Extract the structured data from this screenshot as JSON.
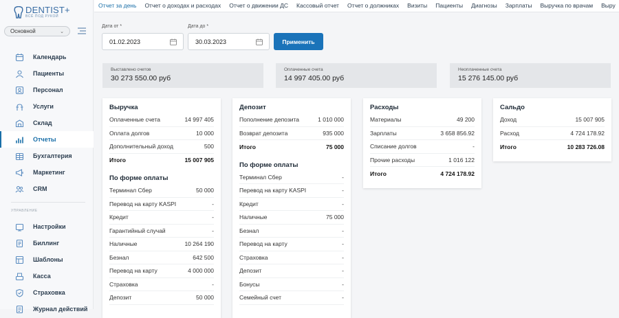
{
  "app": {
    "logo_name": "DENTIST+",
    "logo_tagline": "ВСЁ ПОД РУКОЙ",
    "branch_select": "Основной"
  },
  "sidebar": {
    "items": [
      {
        "label": "Календарь",
        "icon": "calendar-icon"
      },
      {
        "label": "Пациенты",
        "icon": "patients-icon"
      },
      {
        "label": "Персонал",
        "icon": "staff-icon"
      },
      {
        "label": "Услуги",
        "icon": "services-icon"
      },
      {
        "label": "Склад",
        "icon": "warehouse-icon"
      },
      {
        "label": "Отчеты",
        "icon": "reports-icon",
        "active": true
      },
      {
        "label": "Бухгалтерия",
        "icon": "accounting-icon"
      },
      {
        "label": "Маркетинг",
        "icon": "marketing-icon"
      },
      {
        "label": "CRM",
        "icon": "crm-icon"
      }
    ],
    "section_label": "УПРАВЛЕНИЕ",
    "admin_items": [
      {
        "label": "Настройки",
        "icon": "settings-icon"
      },
      {
        "label": "Биллинг",
        "icon": "billing-icon"
      },
      {
        "label": "Шаблоны",
        "icon": "templates-icon"
      },
      {
        "label": "Касса",
        "icon": "cashbox-icon"
      },
      {
        "label": "Страховка",
        "icon": "insurance-icon"
      },
      {
        "label": "Журнал действий",
        "icon": "log-icon"
      }
    ]
  },
  "tabs": [
    "Отчет за день",
    "Отчет о доходах и расходах",
    "Отчет о движении ДС",
    "Кассовый отчет",
    "Отчет о должниках",
    "Визиты",
    "Пациенты",
    "Диагнозы",
    "Зарплаты",
    "Выручка по врачам",
    "Выру"
  ],
  "filters": {
    "date_from_label": "Дата от",
    "date_from": "01.02.2023",
    "date_to_label": "Дата до",
    "date_to": "30.03.2023",
    "required_mark": "*",
    "apply": "Применить"
  },
  "summary": [
    {
      "label": "Выставлено счетов",
      "value": "30 273 550.00 руб"
    },
    {
      "label": "Оплаченные счета",
      "value": "14 997 405.00 руб"
    },
    {
      "label": "Неоплаченные счета",
      "value": "15 276 145.00 руб"
    }
  ],
  "cards": {
    "revenue": {
      "title": "Выручка",
      "rows": [
        [
          "Оплаченные счета",
          "14 997 405"
        ],
        [
          "Оплата долгов",
          "10 000"
        ],
        [
          "Дополнительный доход",
          "500"
        ]
      ],
      "total": [
        "Итого",
        "15 007 905"
      ],
      "sub_title": "По форме оплаты",
      "sub_rows": [
        [
          "Терминал Сбер",
          "50 000"
        ],
        [
          "Перевод на карту KASPI",
          "-"
        ],
        [
          "Кредит",
          "-"
        ],
        [
          "Гарантийный случай",
          "-"
        ],
        [
          "Наличные",
          "10 264 190"
        ],
        [
          "Безнал",
          "642 500"
        ],
        [
          "Перевод на карту",
          "4 000 000"
        ],
        [
          "Страховка",
          "-"
        ],
        [
          "Депозит",
          "50 000"
        ]
      ]
    },
    "deposit": {
      "title": "Депозит",
      "rows": [
        [
          "Пополнение депозита",
          "1 010 000"
        ],
        [
          "Возврат депозита",
          "935 000"
        ]
      ],
      "total": [
        "Итого",
        "75 000"
      ],
      "sub_title": "По форме оплаты",
      "sub_rows": [
        [
          "Терминал Сбер",
          "-"
        ],
        [
          "Перевод на карту KASPI",
          "-"
        ],
        [
          "Кредит",
          "-"
        ],
        [
          "Наличные",
          "75 000"
        ],
        [
          "Безнал",
          "-"
        ],
        [
          "Перевод на карту",
          "-"
        ],
        [
          "Страховка",
          "-"
        ],
        [
          "Депозит",
          "-"
        ],
        [
          "Бонусы",
          "-"
        ],
        [
          "Семейный счет",
          "-"
        ]
      ]
    },
    "expenses": {
      "title": "Расходы",
      "rows": [
        [
          "Материалы",
          "49 200"
        ],
        [
          "Зарплаты",
          "3 658 856.92"
        ],
        [
          "Списание долгов",
          "-"
        ],
        [
          "Прочие расходы",
          "1 016 122"
        ]
      ],
      "total": [
        "Итого",
        "4 724 178.92"
      ]
    },
    "balance": {
      "title": "Сальдо",
      "rows": [
        [
          "Доход",
          "15 007 905"
        ],
        [
          "Расход",
          "4 724 178.92"
        ]
      ],
      "total": [
        "Итого",
        "10 283 726.08"
      ]
    }
  }
}
